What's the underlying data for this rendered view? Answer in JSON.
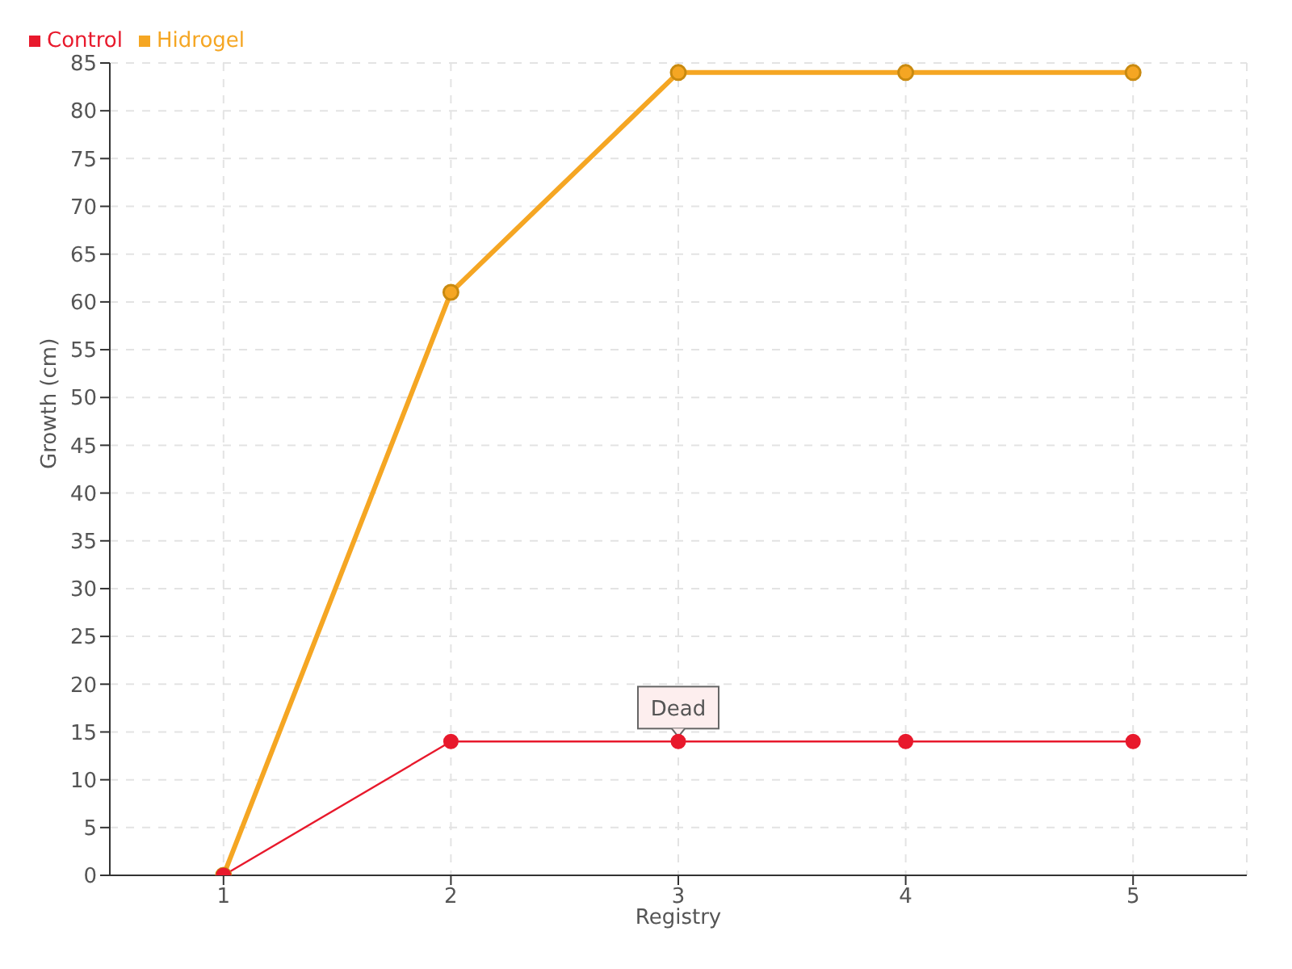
{
  "chart_data": {
    "type": "line",
    "xlabel": "Registry",
    "ylabel": "Growth (cm)",
    "categories": [
      "1",
      "2",
      "3",
      "4",
      "5"
    ],
    "series": [
      {
        "name": "Hidrogel",
        "color": "#f5a623",
        "values": [
          0,
          61,
          84,
          84,
          84
        ]
      },
      {
        "name": "Control",
        "color": "#e8192c",
        "values": [
          0,
          14,
          14,
          14,
          14
        ]
      }
    ],
    "ylim": [
      0,
      85
    ],
    "yticks": [
      0,
      5,
      10,
      15,
      20,
      25,
      30,
      35,
      40,
      45,
      50,
      55,
      60,
      65,
      70,
      75,
      80,
      85
    ],
    "grid": true,
    "legend": "top left",
    "marker": "circle",
    "line_style": "solid",
    "annotations": [
      {
        "text": "Dead",
        "x": "3",
        "y": 14
      }
    ]
  }
}
